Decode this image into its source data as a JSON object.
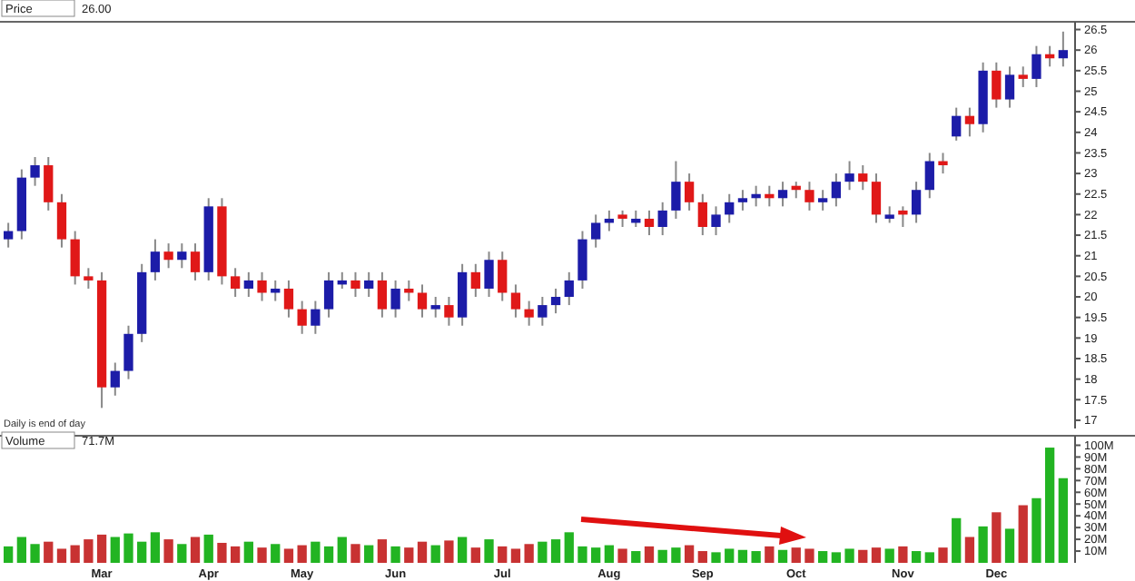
{
  "chart_data": [
    {
      "type": "candlestick",
      "title": "Price",
      "tick_labels": "y",
      "ylim": [
        16.8,
        26.6
      ],
      "yticks": [
        17,
        17.5,
        18,
        18.5,
        19,
        19.5,
        20,
        20.5,
        21,
        21.5,
        22,
        22.5,
        23,
        23.5,
        24,
        24.5,
        25,
        25.5,
        26,
        26.5
      ],
      "categories": [
        null,
        null,
        null,
        null,
        null,
        null,
        null,
        null,
        null,
        null,
        null,
        null,
        null,
        null,
        null,
        null,
        null,
        null,
        null,
        null,
        null,
        null,
        null,
        null,
        null,
        null,
        null,
        null,
        null,
        null,
        null,
        null,
        null,
        null,
        null,
        null,
        null,
        null,
        null,
        null,
        null,
        null,
        null,
        null,
        null,
        null,
        null,
        null,
        null,
        null,
        null,
        null,
        null,
        null,
        null,
        null,
        null,
        null,
        null,
        null,
        null,
        null,
        null,
        null,
        null,
        null,
        null,
        null,
        null,
        null,
        null,
        null,
        null,
        null,
        null,
        null,
        null,
        null,
        null,
        null
      ],
      "ohlc": [
        [
          21.4,
          21.8,
          21.2,
          21.6
        ],
        [
          21.6,
          23.1,
          21.4,
          22.9
        ],
        [
          22.9,
          23.4,
          22.7,
          23.2
        ],
        [
          23.2,
          23.4,
          22.1,
          22.3
        ],
        [
          22.3,
          22.5,
          21.2,
          21.4
        ],
        [
          21.4,
          21.6,
          20.3,
          20.5
        ],
        [
          20.5,
          20.7,
          20.2,
          20.4
        ],
        [
          20.4,
          20.6,
          17.3,
          17.8
        ],
        [
          17.8,
          18.4,
          17.6,
          18.2
        ],
        [
          18.2,
          19.3,
          18.0,
          19.1
        ],
        [
          19.1,
          20.8,
          18.9,
          20.6
        ],
        [
          20.6,
          21.4,
          20.4,
          21.1
        ],
        [
          21.1,
          21.3,
          20.7,
          20.9
        ],
        [
          20.9,
          21.3,
          20.7,
          21.1
        ],
        [
          21.1,
          21.3,
          20.4,
          20.6
        ],
        [
          20.6,
          22.4,
          20.4,
          22.2
        ],
        [
          22.2,
          22.4,
          20.3,
          20.5
        ],
        [
          20.5,
          20.7,
          20.0,
          20.2
        ],
        [
          20.2,
          20.6,
          20.0,
          20.4
        ],
        [
          20.4,
          20.6,
          19.9,
          20.1
        ],
        [
          20.1,
          20.4,
          19.9,
          20.2
        ],
        [
          20.2,
          20.4,
          19.5,
          19.7
        ],
        [
          19.7,
          19.9,
          19.1,
          19.3
        ],
        [
          19.3,
          19.9,
          19.1,
          19.7
        ],
        [
          19.7,
          20.6,
          19.5,
          20.4
        ],
        [
          20.3,
          20.6,
          20.2,
          20.4
        ],
        [
          20.4,
          20.6,
          20.0,
          20.2
        ],
        [
          20.2,
          20.6,
          20.0,
          20.4
        ],
        [
          20.4,
          20.6,
          19.5,
          19.7
        ],
        [
          19.7,
          20.4,
          19.5,
          20.2
        ],
        [
          20.2,
          20.4,
          19.9,
          20.1
        ],
        [
          20.1,
          20.3,
          19.5,
          19.7
        ],
        [
          19.7,
          20.0,
          19.5,
          19.8
        ],
        [
          19.8,
          20.0,
          19.3,
          19.5
        ],
        [
          19.5,
          20.8,
          19.3,
          20.6
        ],
        [
          20.6,
          20.8,
          20.0,
          20.2
        ],
        [
          20.2,
          21.1,
          20.0,
          20.9
        ],
        [
          20.9,
          21.1,
          19.9,
          20.1
        ],
        [
          20.1,
          20.3,
          19.5,
          19.7
        ],
        [
          19.7,
          19.9,
          19.3,
          19.5
        ],
        [
          19.5,
          20.0,
          19.3,
          19.8
        ],
        [
          19.8,
          20.2,
          19.6,
          20.0
        ],
        [
          20.0,
          20.6,
          19.8,
          20.4
        ],
        [
          20.4,
          21.6,
          20.2,
          21.4
        ],
        [
          21.4,
          22.0,
          21.2,
          21.8
        ],
        [
          21.8,
          22.1,
          21.6,
          21.9
        ],
        [
          22.0,
          22.1,
          21.7,
          21.9
        ],
        [
          21.8,
          22.1,
          21.7,
          21.9
        ],
        [
          21.9,
          22.1,
          21.5,
          21.7
        ],
        [
          21.7,
          22.3,
          21.5,
          22.1
        ],
        [
          22.1,
          23.3,
          21.9,
          22.8
        ],
        [
          22.8,
          23.0,
          22.1,
          22.3
        ],
        [
          22.3,
          22.5,
          21.5,
          21.7
        ],
        [
          21.7,
          22.2,
          21.5,
          22.0
        ],
        [
          22.0,
          22.5,
          21.8,
          22.3
        ],
        [
          22.3,
          22.6,
          22.1,
          22.4
        ],
        [
          22.4,
          22.7,
          22.2,
          22.5
        ],
        [
          22.5,
          22.7,
          22.2,
          22.4
        ],
        [
          22.4,
          22.8,
          22.2,
          22.6
        ],
        [
          22.7,
          22.8,
          22.4,
          22.6
        ],
        [
          22.6,
          22.8,
          22.1,
          22.3
        ],
        [
          22.3,
          22.6,
          22.1,
          22.4
        ],
        [
          22.4,
          23.0,
          22.2,
          22.8
        ],
        [
          22.8,
          23.3,
          22.6,
          23.0
        ],
        [
          23.0,
          23.2,
          22.6,
          22.8
        ],
        [
          22.8,
          23.0,
          21.8,
          22.0
        ],
        [
          21.9,
          22.2,
          21.8,
          22.0
        ],
        [
          22.1,
          22.2,
          21.7,
          22.0
        ],
        [
          22.0,
          22.8,
          21.8,
          22.6
        ],
        [
          22.6,
          23.5,
          22.4,
          23.3
        ],
        [
          23.3,
          23.5,
          23.0,
          23.2
        ],
        [
          23.9,
          24.6,
          23.8,
          24.4
        ],
        [
          24.4,
          24.6,
          23.9,
          24.2
        ],
        [
          24.2,
          25.7,
          24.0,
          25.5
        ],
        [
          25.5,
          25.7,
          24.6,
          24.8
        ],
        [
          24.8,
          25.6,
          24.6,
          25.4
        ],
        [
          25.4,
          25.6,
          25.1,
          25.3
        ],
        [
          25.3,
          26.1,
          25.1,
          25.9
        ],
        [
          25.9,
          26.1,
          25.6,
          25.8
        ],
        [
          25.8,
          26.45,
          25.6,
          26.0
        ]
      ],
      "colors": [
        "#1c1ca8",
        "#1c1ca8",
        "#1c1ca8",
        "#e01818",
        "#e01818",
        "#e01818",
        "#e01818",
        "#e01818",
        "#1c1ca8",
        "#1c1ca8",
        "#1c1ca8",
        "#1c1ca8",
        "#e01818",
        "#1c1ca8",
        "#e01818",
        "#1c1ca8",
        "#e01818",
        "#e01818",
        "#1c1ca8",
        "#e01818",
        "#1c1ca8",
        "#e01818",
        "#e01818",
        "#1c1ca8",
        "#1c1ca8",
        "#1c1ca8",
        "#e01818",
        "#1c1ca8",
        "#e01818",
        "#1c1ca8",
        "#e01818",
        "#e01818",
        "#1c1ca8",
        "#e01818",
        "#1c1ca8",
        "#e01818",
        "#1c1ca8",
        "#e01818",
        "#e01818",
        "#e01818",
        "#1c1ca8",
        "#1c1ca8",
        "#1c1ca8",
        "#1c1ca8",
        "#1c1ca8",
        "#1c1ca8",
        "#e01818",
        "#1c1ca8",
        "#e01818",
        "#1c1ca8",
        "#1c1ca8",
        "#e01818",
        "#e01818",
        "#1c1ca8",
        "#1c1ca8",
        "#1c1ca8",
        "#1c1ca8",
        "#e01818",
        "#1c1ca8",
        "#e01818",
        "#e01818",
        "#1c1ca8",
        "#1c1ca8",
        "#1c1ca8",
        "#e01818",
        "#e01818",
        "#1c1ca8",
        "#e01818",
        "#1c1ca8",
        "#1c1ca8",
        "#e01818",
        "#1c1ca8",
        "#e01818",
        "#1c1ca8",
        "#e01818",
        "#1c1ca8",
        "#e01818",
        "#1c1ca8",
        "#e01818",
        "#1c1ca8"
      ],
      "annotations": [
        "Daily is end of day",
        "26.00"
      ]
    },
    {
      "type": "bar",
      "title": "Volume",
      "ylim": [
        0,
        105
      ],
      "yticks": [
        {
          "value": 10,
          "label": "10M"
        },
        {
          "value": 20,
          "label": "20M"
        },
        {
          "value": 30,
          "label": "30M"
        },
        {
          "value": 40,
          "label": "40M"
        },
        {
          "value": 50,
          "label": "50M"
        },
        {
          "value": 60,
          "label": "60M"
        },
        {
          "value": 70,
          "label": "70M"
        },
        {
          "value": 80,
          "label": "80M"
        },
        {
          "value": 90,
          "label": "90M"
        },
        {
          "value": 100,
          "label": "100M"
        }
      ],
      "categories": [
        null,
        null,
        null,
        null,
        null,
        null,
        null,
        "Mar",
        null,
        null,
        null,
        null,
        null,
        null,
        null,
        "Apr",
        null,
        null,
        null,
        null,
        null,
        null,
        "May",
        null,
        null,
        null,
        null,
        null,
        null,
        "Jun",
        null,
        null,
        null,
        null,
        null,
        null,
        null,
        "Jul",
        null,
        null,
        null,
        null,
        null,
        null,
        null,
        "Aug",
        null,
        null,
        null,
        null,
        null,
        null,
        "Sep",
        null,
        null,
        null,
        null,
        null,
        null,
        "Oct",
        null,
        null,
        null,
        null,
        null,
        null,
        null,
        "Nov",
        null,
        null,
        null,
        null,
        null,
        null,
        "Dec",
        null,
        null,
        null,
        null,
        null
      ],
      "values": [
        14,
        22,
        16,
        18,
        12,
        15,
        20,
        24,
        22,
        25,
        18,
        26,
        20,
        16,
        22,
        24,
        17,
        14,
        18,
        13,
        16,
        12,
        15,
        18,
        14,
        22,
        16,
        15,
        20,
        14,
        13,
        18,
        15,
        19,
        22,
        13,
        20,
        14,
        12,
        16,
        18,
        20,
        26,
        14,
        13,
        15,
        12,
        10,
        14,
        11,
        13,
        15,
        10,
        9,
        12,
        11,
        10,
        14,
        11,
        13,
        12,
        10,
        9,
        12,
        11,
        13,
        12,
        14,
        10,
        9,
        13,
        38,
        22,
        31,
        43,
        29,
        49,
        55,
        98,
        72
      ],
      "colors": [
        "#22b422",
        "#22b422",
        "#22b422",
        "#c83232",
        "#c83232",
        "#c83232",
        "#c83232",
        "#c83232",
        "#22b422",
        "#22b422",
        "#22b422",
        "#22b422",
        "#c83232",
        "#22b422",
        "#c83232",
        "#22b422",
        "#c83232",
        "#c83232",
        "#22b422",
        "#c83232",
        "#22b422",
        "#c83232",
        "#c83232",
        "#22b422",
        "#22b422",
        "#22b422",
        "#c83232",
        "#22b422",
        "#c83232",
        "#22b422",
        "#c83232",
        "#c83232",
        "#22b422",
        "#c83232",
        "#22b422",
        "#c83232",
        "#22b422",
        "#c83232",
        "#c83232",
        "#c83232",
        "#22b422",
        "#22b422",
        "#22b422",
        "#22b422",
        "#22b422",
        "#22b422",
        "#c83232",
        "#22b422",
        "#c83232",
        "#22b422",
        "#22b422",
        "#c83232",
        "#c83232",
        "#22b422",
        "#22b422",
        "#22b422",
        "#22b422",
        "#c83232",
        "#22b422",
        "#c83232",
        "#c83232",
        "#22b422",
        "#22b422",
        "#22b422",
        "#c83232",
        "#c83232",
        "#22b422",
        "#c83232",
        "#22b422",
        "#22b422",
        "#c83232",
        "#22b422",
        "#c83232",
        "#22b422",
        "#c83232",
        "#22b422",
        "#c83232",
        "#22b422",
        "#22b422",
        "#22b422"
      ],
      "annotations": [
        "71.7M"
      ]
    }
  ]
}
